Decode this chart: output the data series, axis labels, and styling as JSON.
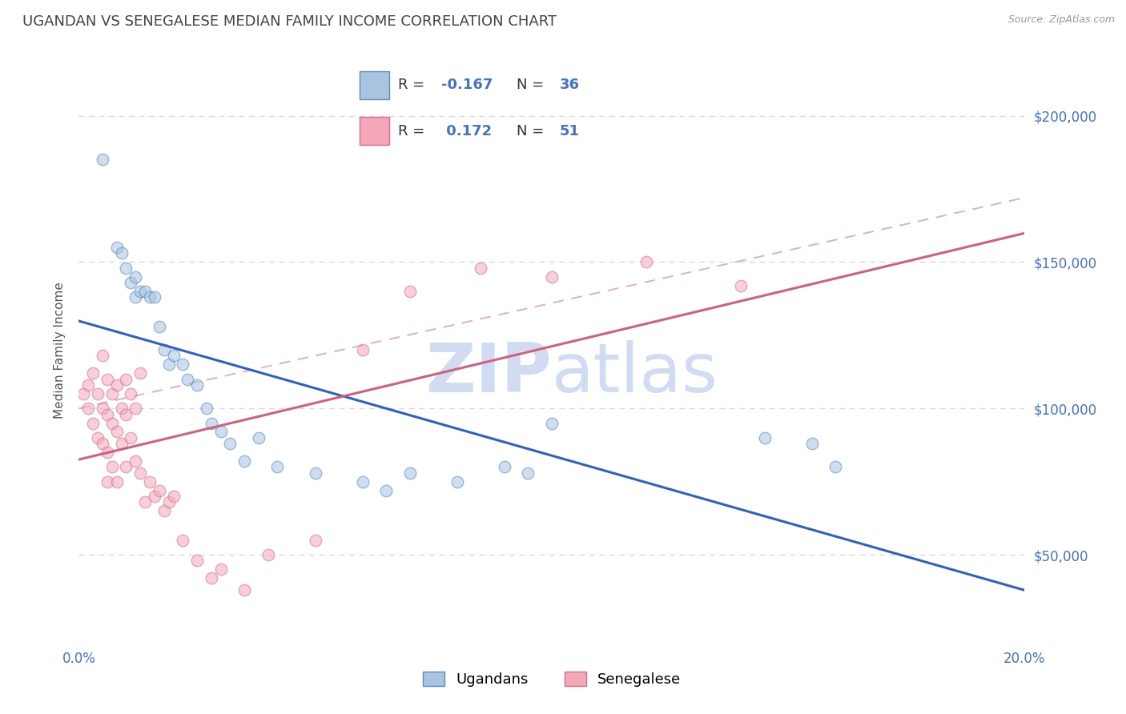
{
  "title": "UGANDAN VS SENEGALESE MEDIAN FAMILY INCOME CORRELATION CHART",
  "source": "Source: ZipAtlas.com",
  "ylabel": "Median Family Income",
  "xlim": [
    0.0,
    0.2
  ],
  "ylim": [
    20000,
    220000
  ],
  "yticks": [
    50000,
    100000,
    150000,
    200000
  ],
  "ytick_labels": [
    "$50,000",
    "$100,000",
    "$150,000",
    "$200,000"
  ],
  "xticks": [
    0.0,
    0.05,
    0.1,
    0.15,
    0.2
  ],
  "xtick_labels": [
    "0.0%",
    "",
    "",
    "",
    "20.0%"
  ],
  "legend_label1": "Ugandans",
  "legend_label2": "Senegalese",
  "ugandan_color": "#a8c4e0",
  "senegalese_color": "#f4a7b9",
  "ugandan_edge": "#5b8db8",
  "senegalese_edge": "#d47090",
  "trend_ugandan_color": "#3060c0",
  "trend_senegalese_color": "#d06080",
  "trend_dashed_color": "#d0a0b0",
  "watermark_zip": "ZIP",
  "watermark_atlas": "atlas",
  "background_color": "#ffffff",
  "grid_color": "#d8d8e8",
  "title_color": "#444444",
  "axis_label_color": "#555555",
  "tick_color": "#4472c4",
  "watermark_color": "#ccd8f0",
  "title_fontsize": 13,
  "axis_label_fontsize": 11,
  "tick_fontsize": 12,
  "legend_fontsize": 13,
  "marker_size": 110,
  "marker_alpha": 0.55,
  "trend_linewidth": 2.2,
  "dashed_linewidth": 1.4,
  "ugandan_x": [
    0.005,
    0.008,
    0.009,
    0.01,
    0.011,
    0.012,
    0.012,
    0.013,
    0.014,
    0.015,
    0.016,
    0.017,
    0.018,
    0.019,
    0.02,
    0.022,
    0.023,
    0.025,
    0.027,
    0.028,
    0.03,
    0.032,
    0.035,
    0.038,
    0.042,
    0.05,
    0.06,
    0.065,
    0.07,
    0.08,
    0.09,
    0.095,
    0.1,
    0.145,
    0.155,
    0.16
  ],
  "ugandan_y": [
    185000,
    155000,
    153000,
    148000,
    143000,
    145000,
    138000,
    140000,
    140000,
    138000,
    138000,
    128000,
    120000,
    115000,
    118000,
    115000,
    110000,
    108000,
    100000,
    95000,
    92000,
    88000,
    82000,
    90000,
    80000,
    78000,
    75000,
    72000,
    78000,
    75000,
    80000,
    78000,
    95000,
    90000,
    88000,
    80000
  ],
  "senegalese_x": [
    0.001,
    0.002,
    0.002,
    0.003,
    0.003,
    0.004,
    0.004,
    0.005,
    0.005,
    0.005,
    0.006,
    0.006,
    0.006,
    0.006,
    0.007,
    0.007,
    0.007,
    0.008,
    0.008,
    0.008,
    0.009,
    0.009,
    0.01,
    0.01,
    0.01,
    0.011,
    0.011,
    0.012,
    0.012,
    0.013,
    0.013,
    0.014,
    0.015,
    0.016,
    0.017,
    0.018,
    0.019,
    0.02,
    0.022,
    0.025,
    0.028,
    0.03,
    0.035,
    0.04,
    0.05,
    0.06,
    0.07,
    0.085,
    0.1,
    0.12,
    0.14
  ],
  "senegalese_y": [
    105000,
    108000,
    100000,
    112000,
    95000,
    105000,
    90000,
    118000,
    100000,
    88000,
    110000,
    98000,
    85000,
    75000,
    105000,
    95000,
    80000,
    108000,
    92000,
    75000,
    100000,
    88000,
    110000,
    98000,
    80000,
    105000,
    90000,
    100000,
    82000,
    112000,
    78000,
    68000,
    75000,
    70000,
    72000,
    65000,
    68000,
    70000,
    55000,
    48000,
    42000,
    45000,
    38000,
    50000,
    55000,
    120000,
    140000,
    148000,
    145000,
    150000,
    142000
  ]
}
